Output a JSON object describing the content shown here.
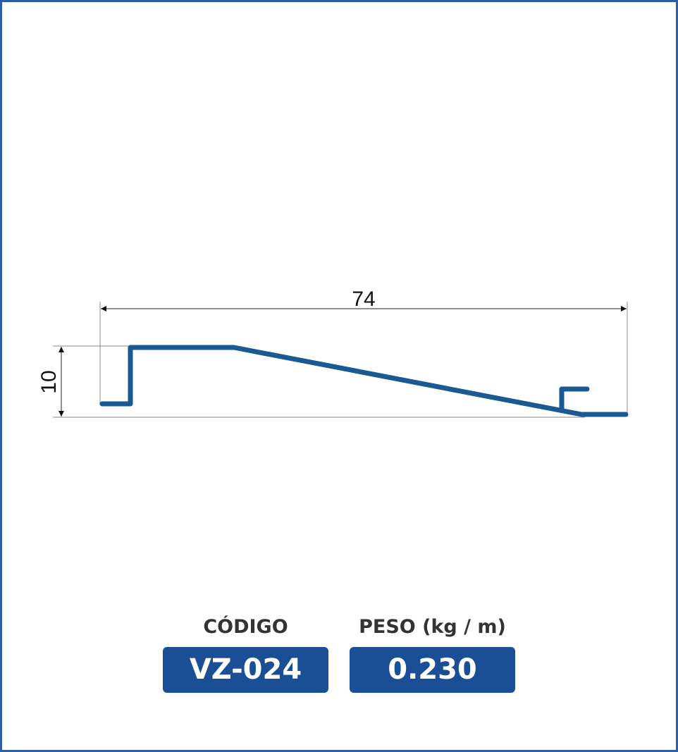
{
  "drawing": {
    "width_label": "74",
    "height_label": "10"
  },
  "info": {
    "code_label": "CÓDIGO",
    "code": "VZ-024",
    "weight_label": "PESO (kg / m)",
    "weight": "0.230"
  }
}
